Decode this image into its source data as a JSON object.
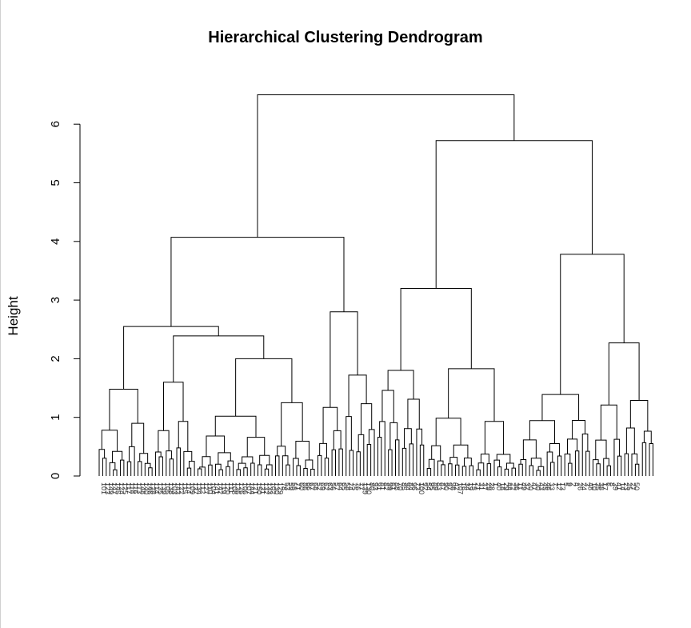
{
  "chart_data": {
    "type": "dendrogram",
    "title": "Hierarchical Clustering Dendrogram",
    "ylabel": "Height",
    "xlabel": "",
    "ylim": [
      0,
      6.5
    ],
    "y_ticks": [
      0,
      1,
      2,
      3,
      4,
      5,
      6
    ],
    "leaf_labels_visible": [
      "101",
      "123",
      "149",
      "147",
      "145",
      "124",
      "125",
      "117",
      "118",
      "116",
      "113",
      "148",
      "140",
      "146",
      "128",
      "114",
      "135",
      "139",
      "105",
      "138",
      "103",
      "143",
      "122",
      "115",
      "114",
      "109",
      "137",
      "134",
      "112",
      "127",
      "110",
      "104",
      "141",
      "142",
      "119",
      "120",
      "111",
      "108",
      "136",
      "126",
      "106",
      "107",
      "144",
      "121",
      "150",
      "131",
      "132",
      "133",
      "102",
      "130",
      "129",
      "78",
      "53",
      "59",
      "55",
      "71",
      "60",
      "86",
      "66",
      "67",
      "68",
      "52",
      "69",
      "62",
      "63",
      "56",
      "57",
      "64",
      "65",
      "58",
      "74",
      "75",
      "76",
      "77",
      "139",
      "130",
      "80",
      "93",
      "91",
      "81",
      "82",
      "99",
      "61",
      "88",
      "70",
      "85",
      "94",
      "84",
      "96",
      "73",
      "100",
      "92",
      "54",
      "95",
      "89",
      "83",
      "87",
      "90",
      "97",
      "98",
      "42",
      "107",
      "16",
      "34",
      "19",
      "15",
      "21",
      "31",
      "37",
      "29",
      "28",
      "1",
      "40",
      "18",
      "29",
      "44",
      "22",
      "36",
      "11",
      "49",
      "32",
      "20",
      "47",
      "30",
      "43",
      "45",
      "46",
      "33",
      "7",
      "12",
      "13",
      "5",
      "9",
      "2",
      "4",
      "26",
      "24",
      "3",
      "48",
      "10",
      "35",
      "38",
      "17",
      "6",
      "8",
      "39",
      "41",
      "14",
      "23",
      "25",
      "27",
      "50"
    ],
    "merges": [
      {
        "height": 6.5,
        "children": [
          "A",
          "B"
        ]
      },
      {
        "height": 5.72,
        "children": [
          "B1",
          "B2"
        ],
        "name": "B"
      },
      {
        "height": 4.07,
        "children": [
          "A1",
          "A2"
        ],
        "name": "A"
      },
      {
        "height": 3.78,
        "children": [
          "B2a",
          "B2b"
        ],
        "name": "B2"
      },
      {
        "height": 3.2,
        "children": [
          "B1a",
          "B1b"
        ],
        "name": "B1"
      },
      {
        "height": 2.8,
        "name": "A2"
      },
      {
        "height": 2.55,
        "children": [
          "A1a",
          "A1b"
        ],
        "name": "A1"
      },
      {
        "height": 2.39,
        "name": "A1b"
      },
      {
        "height": 2.27,
        "name": "B2b"
      },
      {
        "height": 2.0,
        "name": "A1b-right"
      },
      {
        "height": 1.83,
        "name": "B1b"
      },
      {
        "height": 1.8,
        "name": "B1a"
      },
      {
        "height": 1.72,
        "name": "A2-sub"
      },
      {
        "height": 1.6,
        "name": "A1b-left"
      },
      {
        "height": 1.5,
        "name": "B1b-sub"
      },
      {
        "height": 1.48,
        "name": "A1a"
      },
      {
        "height": 1.39,
        "name": "B2a"
      },
      {
        "height": 1.29,
        "name": "B2b-right"
      },
      {
        "height": 1.25,
        "name": "A1b-right-sub"
      },
      {
        "height": 1.21,
        "name": "B2b-left"
      }
    ]
  }
}
